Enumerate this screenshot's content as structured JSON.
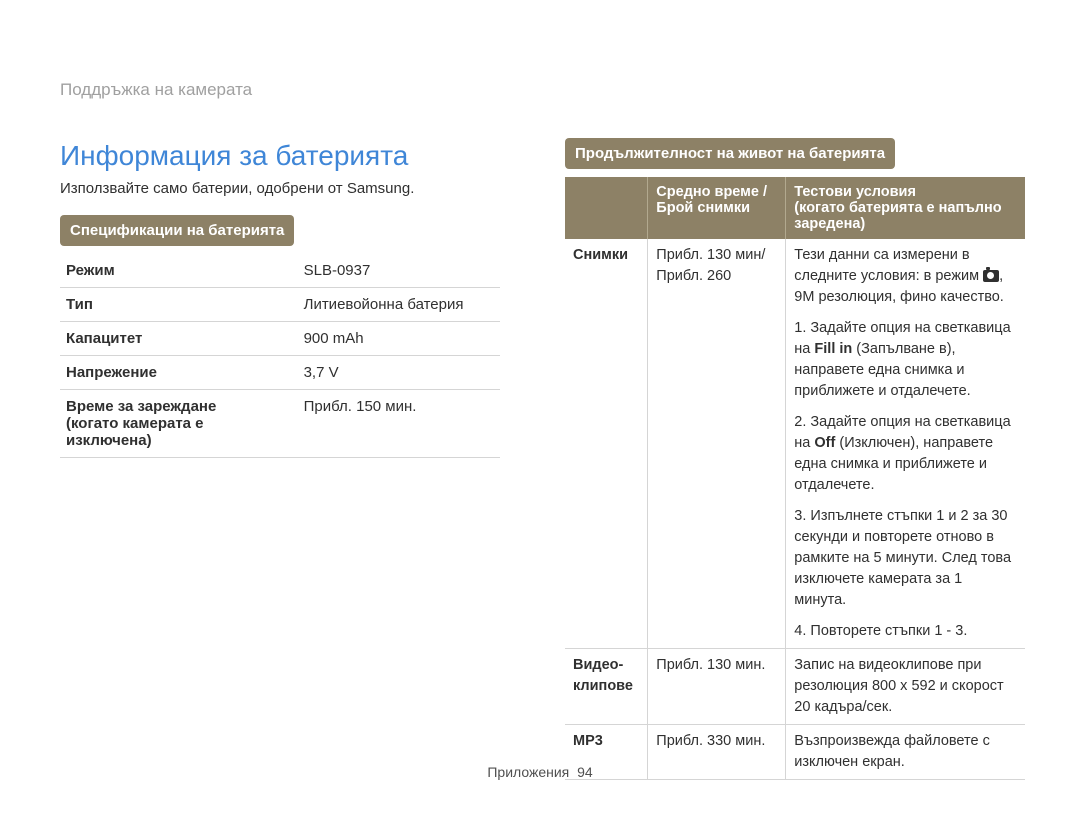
{
  "breadcrumb": "Поддръжка на камерата",
  "title": "Информация за батерията",
  "subtitle": "Използвайте само батерии, одобрени от Samsung.",
  "spec_section_header": "Спецификации на батерията",
  "spec_rows": [
    {
      "label": "Режим",
      "value": "SLB-0937"
    },
    {
      "label": "Тип",
      "value": "Литиевойонна батерия"
    },
    {
      "label": "Капацитет",
      "value": "900 mAh"
    },
    {
      "label": "Напрежение",
      "value": "3,7 V"
    },
    {
      "label": "Време за зареждане\n(когато камерата е изключена)",
      "value": "Прибл. 150 мин."
    }
  ],
  "life_section_header": "Продължителност на живот на батерията",
  "life_header": {
    "col1": "",
    "col2": "Средно време / Брой снимки",
    "col3": "Тестови условия\n(когато батерията е напълно заредена)"
  },
  "life_photos": {
    "label": "Снимки",
    "value": "Прибл. 130 мин/\nПрибл. 260",
    "cond_intro_pre": "Тези данни са измерени в следните условия: в режим ",
    "cond_intro_post": ", 9M резолюция, фино качество.",
    "c1_a": "1. Задайте опция на светкавица на ",
    "c1_b": "Fill in",
    "c1_c": " (Запълване в), направете една снимка и приближете и отдалечете.",
    "c2_a": "2. Задайте опция на светкавица на ",
    "c2_b": "Off",
    "c2_c": " (Изключен), направете една снимка и приближете и отдалечете.",
    "c3": "3. Изпълнете стъпки 1 и 2 за 30 секунди и повторете отново в рамките на 5 минути. След това изключете камерата за 1 минута.",
    "c4": "4. Повторете стъпки 1 - 3."
  },
  "life_video": {
    "label": "Видео-клипове",
    "value": "Прибл. 130 мин.",
    "cond": "Запис на видеоклипове при резолюция 800 x 592 и скорост 20 кадъра/сек."
  },
  "life_mp3": {
    "label": "MP3",
    "value": "Прибл. 330 мин.",
    "cond": "Възпроизвежда файловете с изключен екран."
  },
  "footer": {
    "label": "Приложения",
    "page": "94"
  },
  "colors": {
    "title": "#3f86d7",
    "header_bg": "#8d8166",
    "header_text": "#ffffff",
    "breadcrumb": "#a0a0a0",
    "text": "#303030",
    "border": "#d5d5d5"
  }
}
